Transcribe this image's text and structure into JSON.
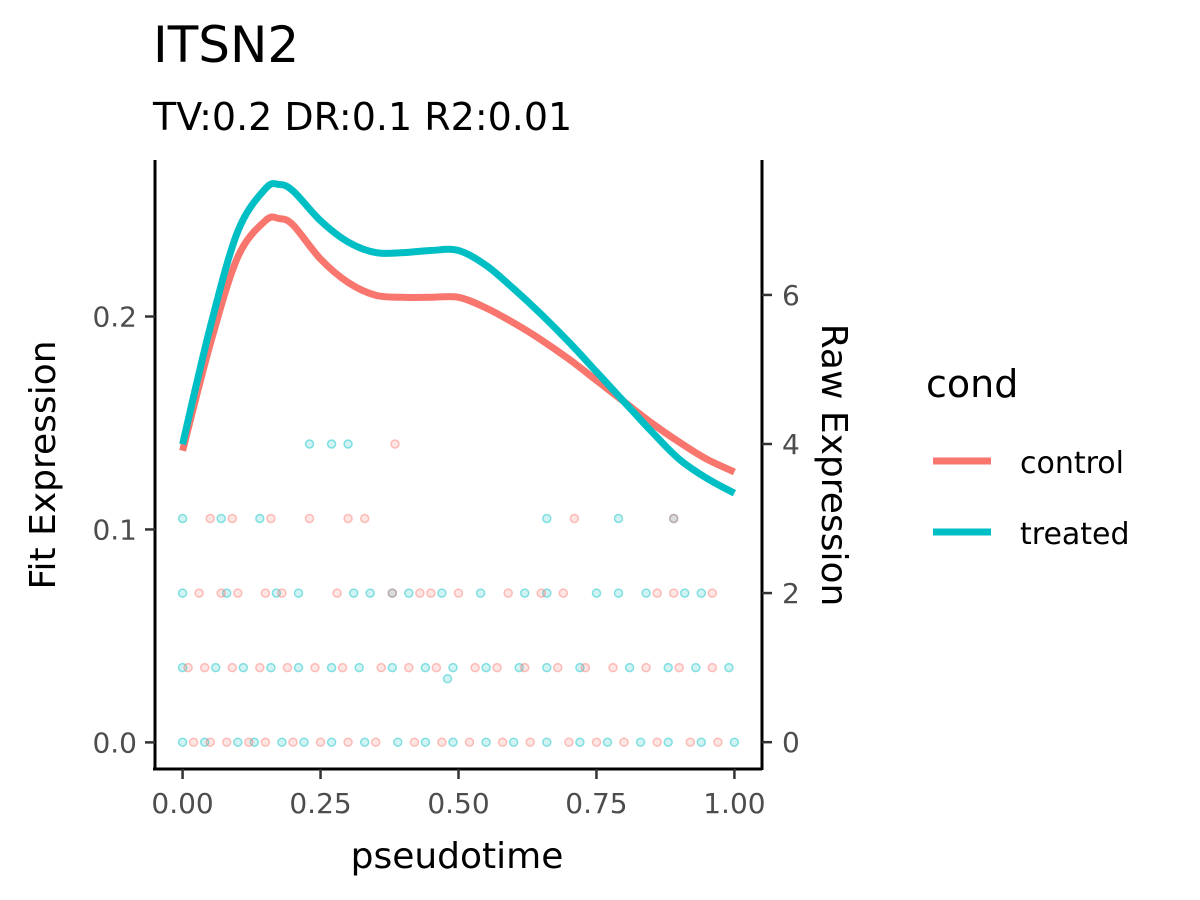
{
  "chart_data": {
    "type": "line",
    "title": "ITSN2",
    "subtitle": "TV:0.2 DR:0.1 R2:0.01",
    "xlabel": "pseudotime",
    "ylabel": "Fit Expression",
    "y2label": "Raw Expression",
    "xlim": [
      -0.05,
      1.05
    ],
    "ylim": [
      -0.0125,
      0.2735
    ],
    "y2lim": [
      -0.36,
      7.81
    ],
    "x_ticks": [
      "0.00",
      "0.25",
      "0.50",
      "0.75",
      "1.00"
    ],
    "y_ticks": [
      "0.0",
      "0.1",
      "0.2"
    ],
    "y2_ticks": [
      "0",
      "2",
      "4",
      "6"
    ],
    "legend": {
      "title": "cond",
      "position": "right",
      "entries": [
        {
          "name": "control",
          "color": "#F8766D"
        },
        {
          "name": "treated",
          "color": "#00BFC4"
        }
      ]
    },
    "series": [
      {
        "name": "control",
        "color": "#F8766D",
        "x": [
          0.0,
          0.05,
          0.1,
          0.15,
          0.175,
          0.2,
          0.25,
          0.3,
          0.35,
          0.4,
          0.45,
          0.5,
          0.55,
          0.6,
          0.65,
          0.7,
          0.75,
          0.8,
          0.85,
          0.9,
          0.95,
          1.0
        ],
        "values": [
          0.137,
          0.187,
          0.228,
          0.245,
          0.246,
          0.243,
          0.227,
          0.216,
          0.21,
          0.209,
          0.209,
          0.209,
          0.204,
          0.197,
          0.189,
          0.18,
          0.17,
          0.16,
          0.15,
          0.141,
          0.133,
          0.127
        ]
      },
      {
        "name": "treated",
        "color": "#00BFC4",
        "x": [
          0.0,
          0.05,
          0.1,
          0.15,
          0.175,
          0.2,
          0.25,
          0.3,
          0.35,
          0.4,
          0.45,
          0.5,
          0.55,
          0.6,
          0.65,
          0.7,
          0.75,
          0.8,
          0.85,
          0.9,
          0.95,
          1.0
        ],
        "values": [
          0.14,
          0.195,
          0.24,
          0.26,
          0.262,
          0.259,
          0.245,
          0.235,
          0.23,
          0.23,
          0.231,
          0.231,
          0.224,
          0.213,
          0.201,
          0.188,
          0.174,
          0.16,
          0.146,
          0.133,
          0.124,
          0.117
        ]
      }
    ],
    "raw_points": {
      "note_levels": [
        0,
        1,
        2,
        3,
        4
      ],
      "control": [
        [
          0.02,
          0
        ],
        [
          0.05,
          0
        ],
        [
          0.08,
          0
        ],
        [
          0.12,
          0
        ],
        [
          0.15,
          0
        ],
        [
          0.2,
          0
        ],
        [
          0.25,
          0
        ],
        [
          0.3,
          0
        ],
        [
          0.35,
          0
        ],
        [
          0.42,
          0
        ],
        [
          0.47,
          0
        ],
        [
          0.52,
          0
        ],
        [
          0.58,
          0
        ],
        [
          0.63,
          0
        ],
        [
          0.7,
          0
        ],
        [
          0.75,
          0
        ],
        [
          0.8,
          0
        ],
        [
          0.86,
          0
        ],
        [
          0.92,
          0
        ],
        [
          0.97,
          0
        ],
        [
          0.01,
          1
        ],
        [
          0.04,
          1
        ],
        [
          0.09,
          1
        ],
        [
          0.14,
          1
        ],
        [
          0.19,
          1
        ],
        [
          0.24,
          1
        ],
        [
          0.29,
          1
        ],
        [
          0.36,
          1
        ],
        [
          0.41,
          1
        ],
        [
          0.46,
          1
        ],
        [
          0.53,
          1
        ],
        [
          0.57,
          1
        ],
        [
          0.62,
          1
        ],
        [
          0.68,
          1
        ],
        [
          0.73,
          1
        ],
        [
          0.78,
          1
        ],
        [
          0.84,
          1
        ],
        [
          0.9,
          1
        ],
        [
          0.96,
          1
        ],
        [
          0.03,
          2
        ],
        [
          0.07,
          2
        ],
        [
          0.1,
          2
        ],
        [
          0.15,
          2
        ],
        [
          0.18,
          2
        ],
        [
          0.28,
          2
        ],
        [
          0.38,
          2
        ],
        [
          0.43,
          2
        ],
        [
          0.45,
          2
        ],
        [
          0.5,
          2
        ],
        [
          0.59,
          2
        ],
        [
          0.65,
          2
        ],
        [
          0.69,
          2
        ],
        [
          0.86,
          2
        ],
        [
          0.89,
          2
        ],
        [
          0.96,
          2
        ],
        [
          0.05,
          3
        ],
        [
          0.09,
          3
        ],
        [
          0.16,
          3
        ],
        [
          0.23,
          3
        ],
        [
          0.3,
          3
        ],
        [
          0.33,
          3
        ],
        [
          0.71,
          3
        ],
        [
          0.89,
          3
        ],
        [
          0.385,
          4
        ]
      ],
      "treated": [
        [
          0.0,
          0
        ],
        [
          0.04,
          0
        ],
        [
          0.1,
          0
        ],
        [
          0.13,
          0
        ],
        [
          0.18,
          0
        ],
        [
          0.22,
          0
        ],
        [
          0.27,
          0
        ],
        [
          0.33,
          0
        ],
        [
          0.39,
          0
        ],
        [
          0.44,
          0
        ],
        [
          0.49,
          0
        ],
        [
          0.55,
          0
        ],
        [
          0.6,
          0
        ],
        [
          0.66,
          0
        ],
        [
          0.72,
          0
        ],
        [
          0.77,
          0
        ],
        [
          0.83,
          0
        ],
        [
          0.88,
          0
        ],
        [
          0.94,
          0
        ],
        [
          1.0,
          0
        ],
        [
          0.0,
          1
        ],
        [
          0.06,
          1
        ],
        [
          0.11,
          1
        ],
        [
          0.16,
          1
        ],
        [
          0.21,
          1
        ],
        [
          0.27,
          1
        ],
        [
          0.32,
          1
        ],
        [
          0.38,
          1
        ],
        [
          0.44,
          1
        ],
        [
          0.49,
          1
        ],
        [
          0.55,
          1
        ],
        [
          0.61,
          1
        ],
        [
          0.66,
          1
        ],
        [
          0.72,
          1
        ],
        [
          0.81,
          1
        ],
        [
          0.88,
          1
        ],
        [
          0.93,
          1
        ],
        [
          0.99,
          1
        ],
        [
          0.48,
          0.85
        ],
        [
          0.0,
          2
        ],
        [
          0.08,
          2
        ],
        [
          0.17,
          2
        ],
        [
          0.21,
          2
        ],
        [
          0.31,
          2
        ],
        [
          0.34,
          2
        ],
        [
          0.38,
          2
        ],
        [
          0.41,
          2
        ],
        [
          0.47,
          2
        ],
        [
          0.54,
          2
        ],
        [
          0.62,
          2
        ],
        [
          0.66,
          2
        ],
        [
          0.75,
          2
        ],
        [
          0.79,
          2
        ],
        [
          0.84,
          2
        ],
        [
          0.91,
          2
        ],
        [
          0.94,
          2
        ],
        [
          0.0,
          3
        ],
        [
          0.07,
          3
        ],
        [
          0.14,
          3
        ],
        [
          0.66,
          3
        ],
        [
          0.79,
          3
        ],
        [
          0.89,
          3
        ],
        [
          0.23,
          4
        ],
        [
          0.27,
          4
        ],
        [
          0.3,
          4
        ]
      ]
    }
  }
}
